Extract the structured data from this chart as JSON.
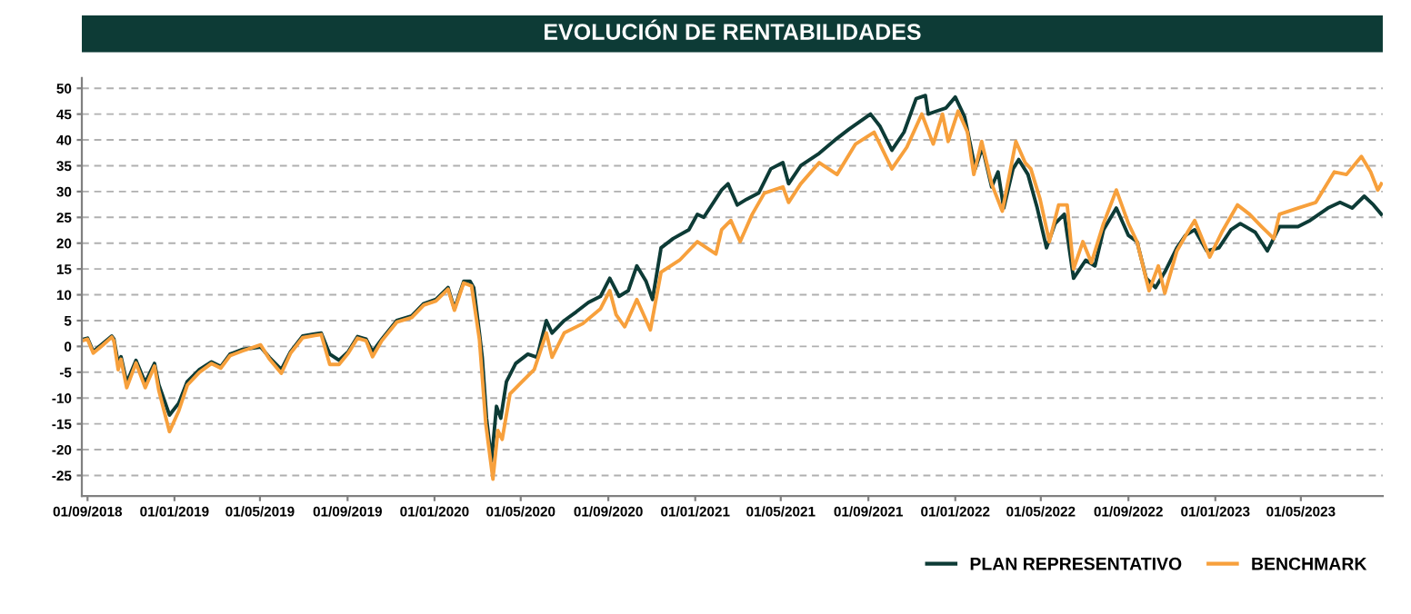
{
  "chart_data": {
    "type": "line",
    "title": "EVOLUCIÓN DE RENTABILIDADES",
    "xlim": [
      "2018-08-24",
      "2023-08-24"
    ],
    "xticks": [
      {
        "value": "2018-09-01",
        "label": "01/09/2018"
      },
      {
        "value": "2019-01-01",
        "label": "01/01/2019"
      },
      {
        "value": "2019-05-01",
        "label": "01/05/2019"
      },
      {
        "value": "2019-09-01",
        "label": "01/09/2019"
      },
      {
        "value": "2020-01-01",
        "label": "01/01/2020"
      },
      {
        "value": "2020-05-01",
        "label": "01/05/2020"
      },
      {
        "value": "2020-09-01",
        "label": "01/09/2020"
      },
      {
        "value": "2021-01-01",
        "label": "01/01/2021"
      },
      {
        "value": "2021-05-01",
        "label": "01/05/2021"
      },
      {
        "value": "2021-09-01",
        "label": "01/09/2021"
      },
      {
        "value": "2022-01-01",
        "label": "01/01/2022"
      },
      {
        "value": "2022-05-01",
        "label": "01/05/2022"
      },
      {
        "value": "2022-09-01",
        "label": "01/09/2022"
      },
      {
        "value": "2023-01-01",
        "label": "01/01/2023"
      },
      {
        "value": "2023-05-01",
        "label": "01/05/2023"
      }
    ],
    "ylim": [
      -29,
      52
    ],
    "yticks": [
      -25,
      -20,
      -15,
      -10,
      -5,
      0,
      5,
      10,
      15,
      20,
      25,
      30,
      35,
      40,
      45,
      50
    ],
    "grid": "y",
    "legend": "bottom right",
    "marker": "none",
    "line_style": "solid",
    "series": [
      {
        "name": "PLAN REPRESENTATIVO",
        "color": "#0d3b36",
        "x": [
          "2018-08-27",
          "2018-09-01",
          "2018-09-09",
          "2018-09-22",
          "2018-10-05",
          "2018-10-08",
          "2018-10-14",
          "2018-10-18",
          "2018-10-26",
          "2018-11-08",
          "2018-11-21",
          "2018-12-04",
          "2018-12-10",
          "2018-12-25",
          "2019-01-07",
          "2019-01-19",
          "2019-02-05",
          "2019-02-22",
          "2019-03-07",
          "2019-03-20",
          "2019-04-06",
          "2019-05-02",
          "2019-05-14",
          "2019-05-31",
          "2019-06-13",
          "2019-06-30",
          "2019-07-17",
          "2019-07-26",
          "2019-08-07",
          "2019-08-20",
          "2019-09-02",
          "2019-09-15",
          "2019-09-27",
          "2019-10-06",
          "2019-10-19",
          "2019-11-09",
          "2019-11-30",
          "2019-12-17",
          "2020-01-03",
          "2020-01-20",
          "2020-01-29",
          "2020-02-11",
          "2020-02-20",
          "2020-02-25",
          "2020-03-04",
          "2020-03-08",
          "2020-03-14",
          "2020-03-21",
          "2020-03-28",
          "2020-04-03",
          "2020-04-11",
          "2020-04-24",
          "2020-05-11",
          "2020-05-24",
          "2020-06-06",
          "2020-06-14",
          "2020-07-01",
          "2020-07-18",
          "2020-08-04",
          "2020-08-21",
          "2020-09-03",
          "2020-09-16",
          "2020-09-29",
          "2020-10-11",
          "2020-10-24",
          "2020-11-02",
          "2020-11-14",
          "2020-12-01",
          "2020-12-23",
          "2021-01-04",
          "2021-01-13",
          "2021-02-07",
          "2021-02-16",
          "2021-03-01",
          "2021-03-14",
          "2021-03-31",
          "2021-04-17",
          "2021-05-04",
          "2021-05-12",
          "2021-05-29",
          "2021-06-24",
          "2021-07-19",
          "2021-08-05",
          "2021-09-04",
          "2021-09-17",
          "2021-10-04",
          "2021-10-21",
          "2021-11-07",
          "2021-11-20",
          "2021-11-24",
          "2021-12-06",
          "2021-12-19",
          "2022-01-01",
          "2022-01-14",
          "2022-01-22",
          "2022-01-29",
          "2022-02-08",
          "2022-02-21",
          "2022-03-02",
          "2022-03-10",
          "2022-03-23",
          "2022-03-31",
          "2022-04-13",
          "2022-04-26",
          "2022-05-09",
          "2022-05-21",
          "2022-06-03",
          "2022-06-16",
          "2022-07-03",
          "2022-07-16",
          "2022-07-28",
          "2022-08-15",
          "2022-09-01",
          "2022-09-13",
          "2022-09-26",
          "2022-10-09",
          "2022-10-22",
          "2022-11-08",
          "2022-11-20",
          "2022-12-03",
          "2022-12-20",
          "2023-01-06",
          "2023-01-23",
          "2023-02-05",
          "2023-02-26",
          "2023-03-15",
          "2023-04-01",
          "2023-04-27",
          "2023-05-14",
          "2023-06-08",
          "2023-06-25",
          "2023-07-12",
          "2023-07-29",
          "2023-08-11",
          "2023-08-22"
        ],
        "values": [
          1.4,
          1.6,
          -1,
          0.5,
          2,
          1.4,
          -3.3,
          -2,
          -7,
          -2.7,
          -7,
          -3.3,
          -7.4,
          -13.3,
          -11,
          -6.8,
          -4.5,
          -3,
          -3.9,
          -1.5,
          -0.6,
          -0.1,
          -2.1,
          -4.5,
          -1,
          2,
          2.4,
          2.6,
          -1.5,
          -2.7,
          -1,
          1.9,
          1.4,
          -1,
          1.4,
          5,
          5.9,
          8.3,
          9.1,
          11.4,
          7.3,
          12.6,
          12.6,
          11.4,
          2.6,
          -2.1,
          -13.9,
          -22.2,
          -11.6,
          -13.9,
          -6.8,
          -3.3,
          -1.5,
          -2.1,
          5,
          2.6,
          5,
          6.7,
          8.5,
          9.7,
          13.2,
          9.7,
          10.8,
          15.6,
          12.6,
          9.1,
          19.1,
          20.9,
          22.6,
          25.6,
          25,
          30.3,
          31.5,
          27.4,
          28.5,
          29.7,
          34.4,
          35.6,
          31.5,
          35,
          37.4,
          40.3,
          42.1,
          45,
          42.7,
          38,
          41.5,
          48,
          48.6,
          45,
          45.6,
          46.2,
          48.3,
          44.5,
          39.2,
          34.4,
          38.6,
          30.9,
          33.8,
          26.8,
          34.4,
          36.2,
          33.3,
          26.8,
          19.1,
          23.8,
          25.6,
          13.2,
          16.7,
          15.6,
          22.6,
          26.8,
          21.5,
          20.3,
          13.2,
          11.4,
          14.4,
          19.1,
          21.5,
          22.6,
          18.5,
          19.1,
          22.6,
          23.8,
          22.1,
          18.5,
          23.2,
          23.2,
          24.4,
          26.8,
          27.9,
          26.8,
          29.1,
          27.4,
          25.6
        ]
      },
      {
        "name": "BENCHMARK",
        "color": "#f7a03c",
        "x": [
          "2018-08-27",
          "2018-09-01",
          "2018-09-09",
          "2018-09-22",
          "2018-10-05",
          "2018-10-08",
          "2018-10-14",
          "2018-10-18",
          "2018-10-26",
          "2018-11-08",
          "2018-11-21",
          "2018-12-04",
          "2018-12-10",
          "2018-12-25",
          "2019-01-07",
          "2019-01-19",
          "2019-02-05",
          "2019-02-22",
          "2019-03-07",
          "2019-03-20",
          "2019-04-06",
          "2019-05-02",
          "2019-05-14",
          "2019-05-31",
          "2019-06-13",
          "2019-06-30",
          "2019-07-17",
          "2019-07-26",
          "2019-08-07",
          "2019-08-20",
          "2019-09-02",
          "2019-09-15",
          "2019-09-27",
          "2019-10-06",
          "2019-10-19",
          "2019-11-09",
          "2019-11-30",
          "2019-12-17",
          "2020-01-03",
          "2020-01-20",
          "2020-01-29",
          "2020-02-11",
          "2020-02-22",
          "2020-03-04",
          "2020-03-13",
          "2020-03-23",
          "2020-03-30",
          "2020-04-05",
          "2020-04-16",
          "2020-05-03",
          "2020-05-20",
          "2020-06-06",
          "2020-06-14",
          "2020-07-01",
          "2020-07-27",
          "2020-08-21",
          "2020-09-03",
          "2020-09-12",
          "2020-09-24",
          "2020-10-11",
          "2020-10-30",
          "2020-11-14",
          "2020-12-10",
          "2021-01-04",
          "2021-01-30",
          "2021-02-07",
          "2021-02-20",
          "2021-03-05",
          "2021-03-22",
          "2021-04-08",
          "2021-05-04",
          "2021-05-12",
          "2021-05-29",
          "2021-06-24",
          "2021-07-19",
          "2021-08-14",
          "2021-09-09",
          "2021-10-04",
          "2021-10-25",
          "2021-11-15",
          "2021-12-01",
          "2021-12-14",
          "2021-12-22",
          "2022-01-05",
          "2022-01-18",
          "2022-01-27",
          "2022-02-07",
          "2022-02-21",
          "2022-03-08",
          "2022-03-27",
          "2022-04-09",
          "2022-04-17",
          "2022-04-30",
          "2022-05-13",
          "2022-05-26",
          "2022-06-07",
          "2022-06-16",
          "2022-06-29",
          "2022-07-11",
          "2022-07-28",
          "2022-08-15",
          "2022-09-01",
          "2022-09-13",
          "2022-09-30",
          "2022-10-13",
          "2022-10-22",
          "2022-11-08",
          "2022-11-25",
          "2022-12-03",
          "2022-12-24",
          "2023-01-10",
          "2023-02-01",
          "2023-02-18",
          "2023-03-07",
          "2023-03-24",
          "2023-04-01",
          "2023-04-27",
          "2023-05-22",
          "2023-06-17",
          "2023-07-04",
          "2023-07-25",
          "2023-08-07",
          "2023-08-17",
          "2023-08-22"
        ],
        "values": [
          1.2,
          1.4,
          -1.3,
          0.2,
          1.8,
          1.1,
          -4.5,
          -2.5,
          -8,
          -3.2,
          -8,
          -3.8,
          -8.5,
          -16.5,
          -12.5,
          -7.5,
          -5,
          -3.3,
          -4.2,
          -1.8,
          -0.9,
          0.3,
          -2.4,
          -5.2,
          -1.3,
          1.7,
          2.1,
          2.3,
          -3.5,
          -3.5,
          -1.3,
          1.6,
          1.1,
          -2,
          1.1,
          4.7,
          5.6,
          8,
          8.8,
          11.1,
          7,
          12.3,
          11.7,
          1.4,
          -15,
          -25.7,
          -16.3,
          -18,
          -9.2,
          -6.8,
          -4.5,
          2.6,
          -2.1,
          2.6,
          4.4,
          7.3,
          10.8,
          6.1,
          3.8,
          9.1,
          3.2,
          14.4,
          16.7,
          20.3,
          17.9,
          22.6,
          24.4,
          20.3,
          25.6,
          29.7,
          30.9,
          27.9,
          31.5,
          35.6,
          33.3,
          39.2,
          41.5,
          34.4,
          38.6,
          45,
          39.2,
          45,
          39.7,
          45.6,
          41.5,
          33.3,
          39.7,
          31.5,
          26.2,
          39.7,
          35.6,
          34.4,
          28.5,
          20.3,
          27.4,
          27.4,
          15,
          20.3,
          16.2,
          23.8,
          30.3,
          23.8,
          20.3,
          10.8,
          15.6,
          10.3,
          18.5,
          22.6,
          24.4,
          17.3,
          22.1,
          27.4,
          25.6,
          23.2,
          20.9,
          25.6,
          26.8,
          27.9,
          33.8,
          33.3,
          36.8,
          33.8,
          30.3,
          31.5
        ]
      }
    ]
  }
}
